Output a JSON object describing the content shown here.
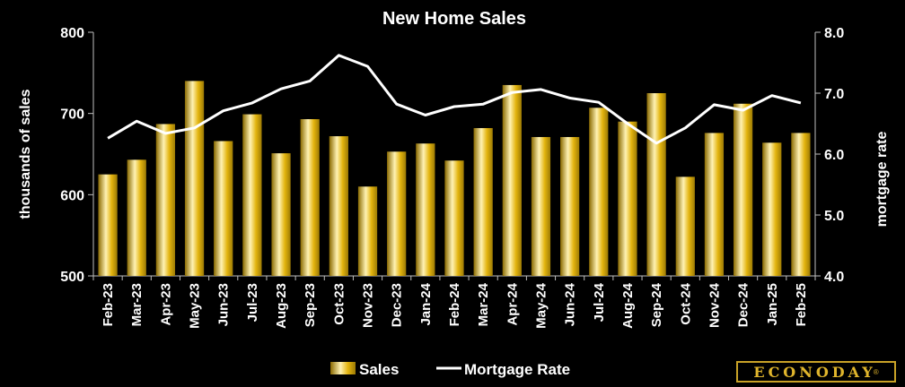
{
  "chart_data": {
    "type": "bar",
    "title": "New Home Sales",
    "categories": [
      "Feb-23",
      "Mar-23",
      "Apr-23",
      "May-23",
      "Jun-23",
      "Jul-23",
      "Aug-23",
      "Sep-23",
      "Oct-23",
      "Nov-23",
      "Dec-23",
      "Jan-24",
      "Feb-24",
      "Mar-24",
      "Apr-24",
      "May-24",
      "Jun-24",
      "Jul-24",
      "Aug-24",
      "Sep-24",
      "Oct-24",
      "Nov-24",
      "Dec-24",
      "Jan-25",
      "Feb-25"
    ],
    "series": [
      {
        "name": "Sales",
        "type": "bar",
        "axis": "left",
        "values": [
          625,
          643,
          687,
          740,
          666,
          699,
          651,
          693,
          672,
          610,
          653,
          663,
          642,
          682,
          735,
          671,
          671,
          707,
          690,
          725,
          622,
          676,
          712,
          664,
          676
        ]
      },
      {
        "name": "Mortgage Rate",
        "type": "line",
        "axis": "right",
        "values": [
          6.26,
          6.54,
          6.34,
          6.43,
          6.71,
          6.84,
          7.07,
          7.2,
          7.62,
          7.44,
          6.82,
          6.64,
          6.78,
          6.82,
          7.01,
          7.06,
          6.92,
          6.85,
          6.5,
          6.18,
          6.43,
          6.81,
          6.72,
          6.96,
          6.84
        ]
      }
    ],
    "ylabel": "thousands of sales",
    "ylim": [
      500,
      800
    ],
    "yticks": [
      500,
      600,
      700,
      800
    ],
    "ytick_labels": [
      "500",
      "600",
      "700",
      "800"
    ],
    "y2label": "mortgage rate",
    "y2lim": [
      4.0,
      8.0
    ],
    "y2ticks": [
      4.0,
      5.0,
      6.0,
      7.0,
      8.0
    ],
    "y2tick_labels": [
      "4.0",
      "5.0",
      "6.0",
      "7.0",
      "8.0"
    ],
    "grid": false,
    "legend": "bottom-center",
    "colors": {
      "bar": "#e3b40e",
      "bar_light": "#fff2b3",
      "bar_dark": "#8a6a00",
      "line": "#ffffff",
      "axis": "#bfbfbf"
    }
  },
  "logo": {
    "text": "ECONODAY",
    "mark": "®"
  }
}
